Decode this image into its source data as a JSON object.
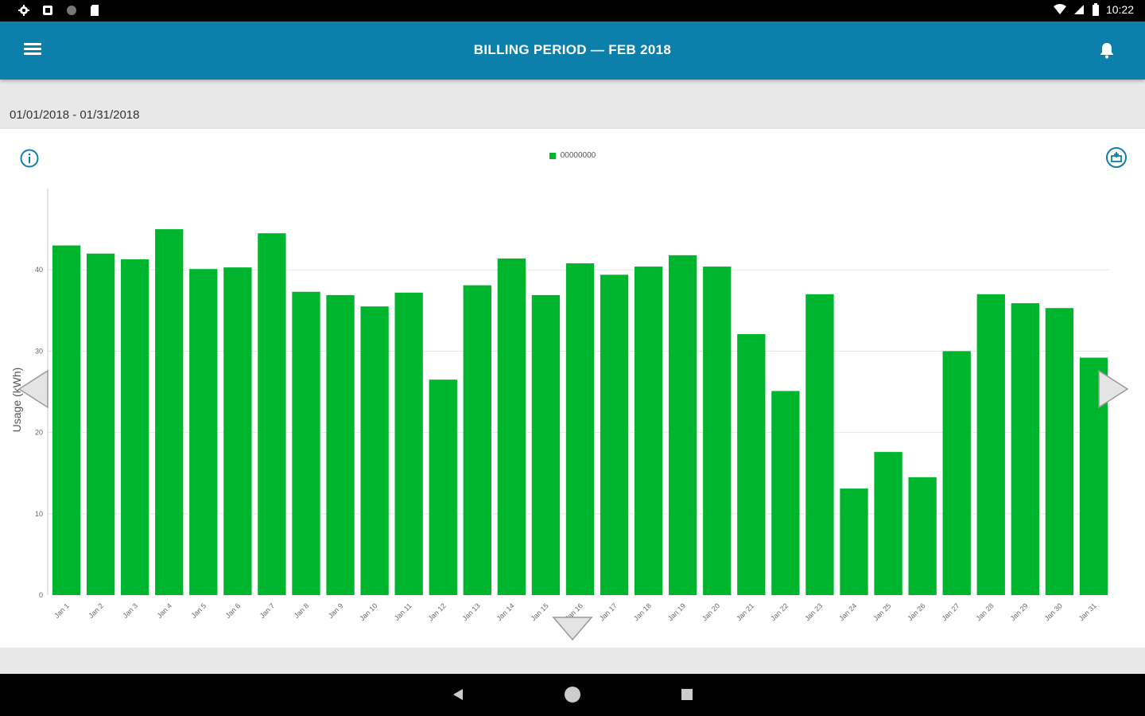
{
  "status_bar": {
    "left_icons": [
      "settings-icon",
      "notification-icon",
      "circle-icon",
      "sd-card-icon"
    ],
    "time": "10:22",
    "right_icons": [
      "wifi-icon",
      "signal-icon",
      "battery-icon"
    ]
  },
  "app_bar": {
    "menu_icon": "menu-icon",
    "title": "BILLING PERIOD  —  FEB 2018",
    "bell_icon": "bell-icon"
  },
  "date_range": "01/01/2018 - 01/31/2018",
  "chart_header": {
    "info_icon": "info-icon",
    "export_icon": "export-icon"
  },
  "colors": {
    "app_bar": "#0d7fab",
    "bar": "#00b52e",
    "grid": "#e5e5e5"
  },
  "chart_data": {
    "type": "bar",
    "legend": [
      {
        "name": "00000000",
        "color": "#00b52e"
      }
    ],
    "legend_placement": "top-center",
    "ylabel": "Usage (kWh)",
    "xlabel": "",
    "ylim": [
      0,
      50
    ],
    "yticks": [
      0,
      10,
      20,
      30,
      40
    ],
    "grid": true,
    "categories": [
      "Jan 1",
      "Jan 2",
      "Jan 3",
      "Jan 4",
      "Jan 5",
      "Jan 6",
      "Jan 7",
      "Jan 8",
      "Jan 9",
      "Jan 10",
      "Jan 11",
      "Jan 12",
      "Jan 13",
      "Jan 14",
      "Jan 15",
      "Jan 16",
      "Jan 17",
      "Jan 18",
      "Jan 19",
      "Jan 20",
      "Jan 21",
      "Jan 22",
      "Jan 23",
      "Jan 24",
      "Jan 25",
      "Jan 26",
      "Jan 27",
      "Jan 28",
      "Jan 29",
      "Jan 30",
      "Jan 31"
    ],
    "series": [
      {
        "name": "00000000",
        "values": [
          43.0,
          42.0,
          41.3,
          45.0,
          40.1,
          40.3,
          44.5,
          37.3,
          36.9,
          35.5,
          37.2,
          26.5,
          38.1,
          41.4,
          36.9,
          40.8,
          39.4,
          40.4,
          41.8,
          40.4,
          32.1,
          25.1,
          37.0,
          13.1,
          17.6,
          14.5,
          30.0,
          37.0,
          35.9,
          35.3,
          29.2
        ]
      }
    ]
  },
  "chart_nav": {
    "prev_icon": "chevron-left-icon",
    "next_icon": "chevron-right-icon",
    "expand_icon": "chevron-down-icon"
  },
  "system_nav": {
    "back_icon": "back-icon",
    "home_icon": "home-icon",
    "recents_icon": "recents-icon"
  }
}
